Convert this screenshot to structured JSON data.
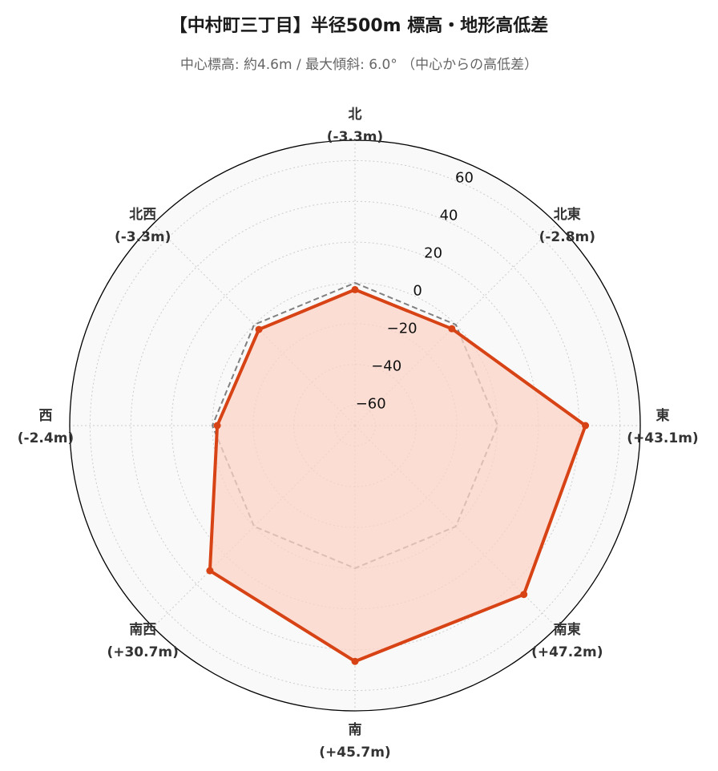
{
  "title": "【中村町三丁目】半径500m 標高・地形高低差",
  "subtitle": "中心標高: 約4.6m / 最大傾斜: 6.0° （中心からの高低差）",
  "chart_data": {
    "type": "radar",
    "categories": [
      "北",
      "北東",
      "東",
      "南東",
      "南",
      "南西",
      "西",
      "北西"
    ],
    "category_value_labels": [
      "(-3.3m)",
      "(-2.8m)",
      "(+43.1m)",
      "(+47.2m)",
      "(+45.7m)",
      "(+30.7m)",
      "(-2.4m)",
      "(-3.3m)"
    ],
    "series": [
      {
        "values": [
          -3.3,
          -2.8,
          43.1,
          47.2,
          45.7,
          30.7,
          -2.4,
          -3.3
        ],
        "color": "#d84315",
        "fill": "#fbd3c7",
        "style": "solid"
      },
      {
        "values": [
          0,
          0,
          0,
          0,
          0,
          0,
          0,
          0
        ],
        "color": "#808080",
        "style": "dashed"
      }
    ],
    "rlim": [
      -70,
      70
    ],
    "rticks": [
      -60,
      -40,
      -20,
      0,
      20,
      40,
      60
    ],
    "rtick_labels": [
      "−60",
      "−40",
      "−20",
      "0",
      "20",
      "40",
      "60"
    ],
    "grid": true,
    "background": "#f9f9f9"
  }
}
